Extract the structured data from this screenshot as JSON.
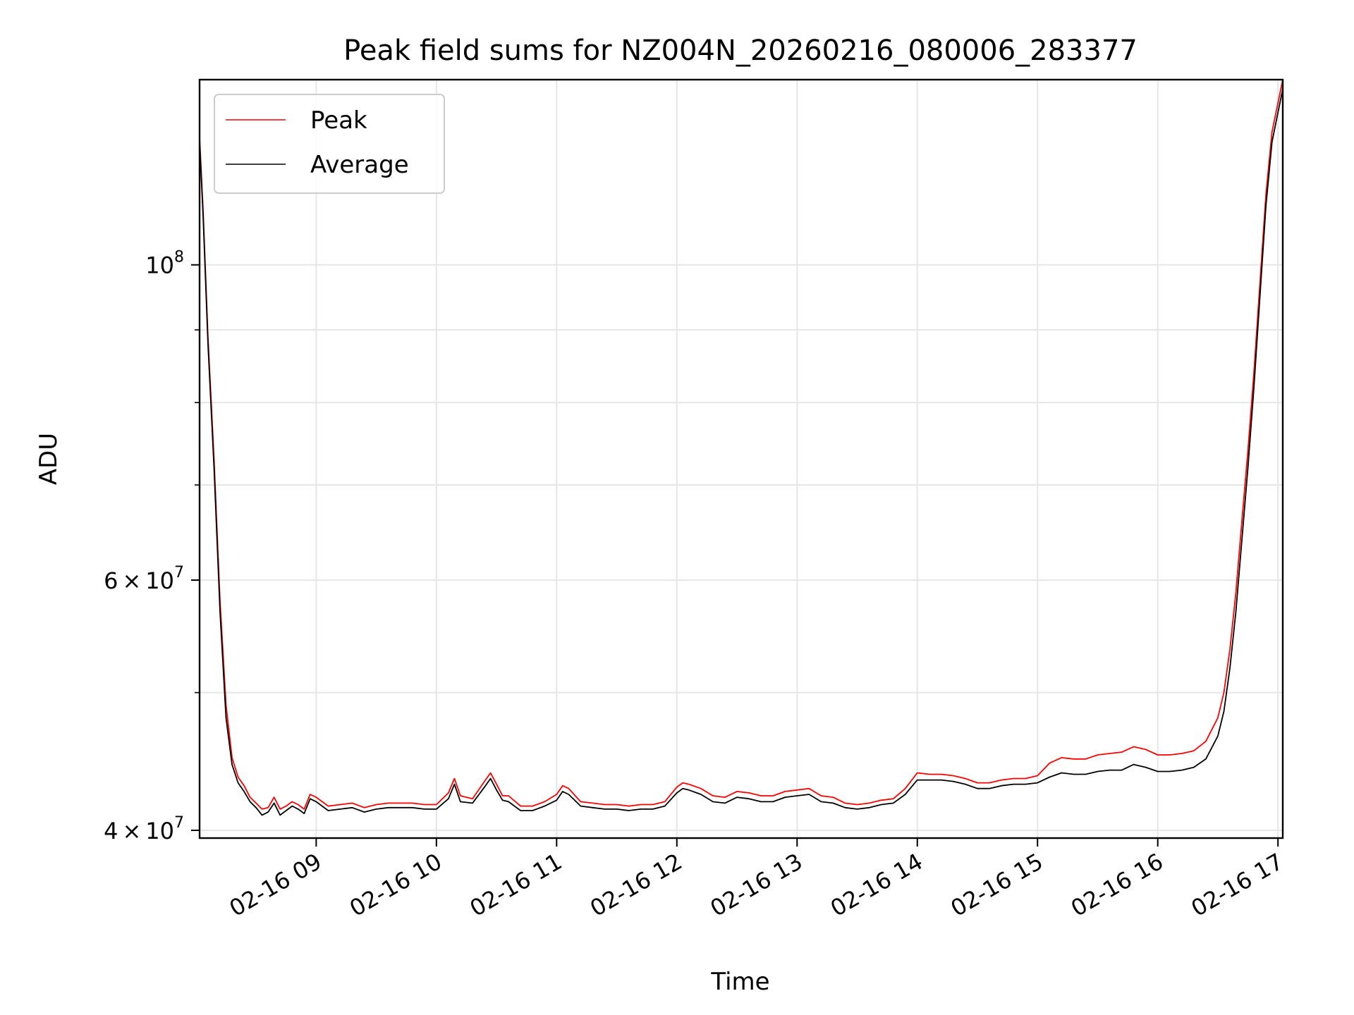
{
  "chart_data": {
    "type": "line",
    "title": "Peak field sums for NZ004N_20260216_080006_283377",
    "xlabel": "Time",
    "ylabel": "ADU",
    "yscale": "log",
    "ylim": [
      39500000,
      135000000
    ],
    "xlim": [
      8.03,
      17.04
    ],
    "grid": true,
    "legend_position": "top-left",
    "x_ticks": [
      {
        "value": 9,
        "label": "02-16 09"
      },
      {
        "value": 10,
        "label": "02-16 10"
      },
      {
        "value": 11,
        "label": "02-16 11"
      },
      {
        "value": 12,
        "label": "02-16 12"
      },
      {
        "value": 13,
        "label": "02-16 13"
      },
      {
        "value": 14,
        "label": "02-16 14"
      },
      {
        "value": 15,
        "label": "02-16 15"
      },
      {
        "value": 16,
        "label": "02-16 16"
      },
      {
        "value": 17,
        "label": "02-16 17"
      }
    ],
    "y_ticks": [
      {
        "value": 40000000,
        "base": "4",
        "times": "×",
        "ten": "10",
        "exp": "7"
      },
      {
        "value": 60000000,
        "base": "6",
        "times": "×",
        "ten": "10",
        "exp": "7"
      },
      {
        "value": 100000000,
        "base": "",
        "times": "",
        "ten": "10",
        "exp": "8"
      }
    ],
    "y_minor_ticks": [
      50000000,
      70000000,
      80000000,
      90000000
    ],
    "series": [
      {
        "name": "Average",
        "color": "#000000",
        "x": [
          8.03,
          8.06,
          8.1,
          8.15,
          8.2,
          8.25,
          8.3,
          8.35,
          8.4,
          8.45,
          8.5,
          8.55,
          8.6,
          8.65,
          8.7,
          8.75,
          8.8,
          8.85,
          8.9,
          8.95,
          9.0,
          9.1,
          9.2,
          9.3,
          9.4,
          9.5,
          9.6,
          9.7,
          9.8,
          9.9,
          10.0,
          10.1,
          10.15,
          10.2,
          10.3,
          10.4,
          10.45,
          10.5,
          10.55,
          10.6,
          10.7,
          10.8,
          10.9,
          11.0,
          11.05,
          11.1,
          11.2,
          11.3,
          11.4,
          11.5,
          11.6,
          11.7,
          11.8,
          11.9,
          12.0,
          12.05,
          12.1,
          12.2,
          12.3,
          12.4,
          12.5,
          12.6,
          12.7,
          12.8,
          12.9,
          13.0,
          13.1,
          13.2,
          13.3,
          13.4,
          13.5,
          13.6,
          13.7,
          13.8,
          13.9,
          14.0,
          14.1,
          14.2,
          14.3,
          14.4,
          14.5,
          14.6,
          14.7,
          14.8,
          14.9,
          15.0,
          15.1,
          15.2,
          15.3,
          15.4,
          15.5,
          15.6,
          15.7,
          15.8,
          15.9,
          16.0,
          16.1,
          16.2,
          16.3,
          16.4,
          16.5,
          16.55,
          16.6,
          16.65,
          16.7,
          16.75,
          16.8,
          16.85,
          16.9,
          16.95,
          17.0,
          17.04
        ],
        "values": [
          122000000,
          108000000,
          88000000,
          72000000,
          57000000,
          48000000,
          44500000,
          43200000,
          42600000,
          41900000,
          41500000,
          41000000,
          41200000,
          41800000,
          41000000,
          41300000,
          41600000,
          41400000,
          41100000,
          42100000,
          41900000,
          41300000,
          41400000,
          41500000,
          41200000,
          41400000,
          41500000,
          41500000,
          41500000,
          41400000,
          41400000,
          42100000,
          43100000,
          41900000,
          41800000,
          42900000,
          43500000,
          42700000,
          42000000,
          41900000,
          41300000,
          41300000,
          41600000,
          42000000,
          42600000,
          42400000,
          41600000,
          41500000,
          41400000,
          41400000,
          41300000,
          41400000,
          41400000,
          41600000,
          42500000,
          42800000,
          42700000,
          42400000,
          41900000,
          41800000,
          42200000,
          42100000,
          41900000,
          41900000,
          42200000,
          42300000,
          42400000,
          41900000,
          41800000,
          41500000,
          41400000,
          41500000,
          41700000,
          41800000,
          42400000,
          43400000,
          43400000,
          43400000,
          43300000,
          43100000,
          42800000,
          42800000,
          43000000,
          43100000,
          43100000,
          43200000,
          43600000,
          43900000,
          43800000,
          43800000,
          44000000,
          44100000,
          44100000,
          44500000,
          44300000,
          44000000,
          44000000,
          44100000,
          44300000,
          44900000,
          46600000,
          48500000,
          52000000,
          57000000,
          64000000,
          72000000,
          82000000,
          95000000,
          110000000,
          122000000,
          128000000,
          133000000
        ]
      },
      {
        "name": "Peak",
        "color": "#ff0000",
        "x": [
          8.03,
          8.06,
          8.1,
          8.15,
          8.2,
          8.25,
          8.3,
          8.35,
          8.4,
          8.45,
          8.5,
          8.55,
          8.6,
          8.65,
          8.7,
          8.75,
          8.8,
          8.85,
          8.9,
          8.95,
          9.0,
          9.1,
          9.2,
          9.3,
          9.4,
          9.5,
          9.6,
          9.7,
          9.8,
          9.9,
          10.0,
          10.1,
          10.15,
          10.2,
          10.3,
          10.4,
          10.45,
          10.5,
          10.55,
          10.6,
          10.7,
          10.8,
          10.9,
          11.0,
          11.05,
          11.1,
          11.2,
          11.3,
          11.4,
          11.5,
          11.6,
          11.7,
          11.8,
          11.9,
          12.0,
          12.05,
          12.1,
          12.2,
          12.3,
          12.4,
          12.5,
          12.6,
          12.7,
          12.8,
          12.9,
          13.0,
          13.1,
          13.2,
          13.3,
          13.4,
          13.5,
          13.6,
          13.7,
          13.8,
          13.9,
          14.0,
          14.1,
          14.2,
          14.3,
          14.4,
          14.5,
          14.6,
          14.7,
          14.8,
          14.9,
          15.0,
          15.1,
          15.2,
          15.3,
          15.4,
          15.5,
          15.6,
          15.7,
          15.8,
          15.9,
          16.0,
          16.1,
          16.2,
          16.3,
          16.4,
          16.5,
          16.55,
          16.6,
          16.65,
          16.7,
          16.75,
          16.8,
          16.85,
          16.9,
          16.95,
          17.0,
          17.04
        ],
        "values": [
          123000000,
          109000000,
          89000000,
          73000000,
          58000000,
          49000000,
          45000000,
          43600000,
          43000000,
          42200000,
          41800000,
          41400000,
          41500000,
          42200000,
          41400000,
          41600000,
          41900000,
          41700000,
          41400000,
          42400000,
          42200000,
          41600000,
          41700000,
          41800000,
          41500000,
          41700000,
          41800000,
          41800000,
          41800000,
          41700000,
          41700000,
          42500000,
          43500000,
          42300000,
          42100000,
          43300000,
          43900000,
          43100000,
          42300000,
          42300000,
          41600000,
          41600000,
          41900000,
          42400000,
          43000000,
          42800000,
          41900000,
          41800000,
          41700000,
          41700000,
          41600000,
          41700000,
          41700000,
          41900000,
          42900000,
          43200000,
          43100000,
          42800000,
          42300000,
          42200000,
          42600000,
          42500000,
          42300000,
          42300000,
          42600000,
          42700000,
          42800000,
          42300000,
          42200000,
          41800000,
          41700000,
          41800000,
          42000000,
          42100000,
          42800000,
          43900000,
          43800000,
          43800000,
          43700000,
          43500000,
          43200000,
          43200000,
          43400000,
          43500000,
          43500000,
          43700000,
          44600000,
          45000000,
          44900000,
          44900000,
          45200000,
          45300000,
          45400000,
          45800000,
          45600000,
          45200000,
          45200000,
          45300000,
          45500000,
          46200000,
          48000000,
          50000000,
          53600000,
          58800000,
          66000000,
          74000000,
          84000000,
          97000000,
          112000000,
          124000000,
          130000000,
          135000000
        ]
      }
    ],
    "annotations": []
  }
}
